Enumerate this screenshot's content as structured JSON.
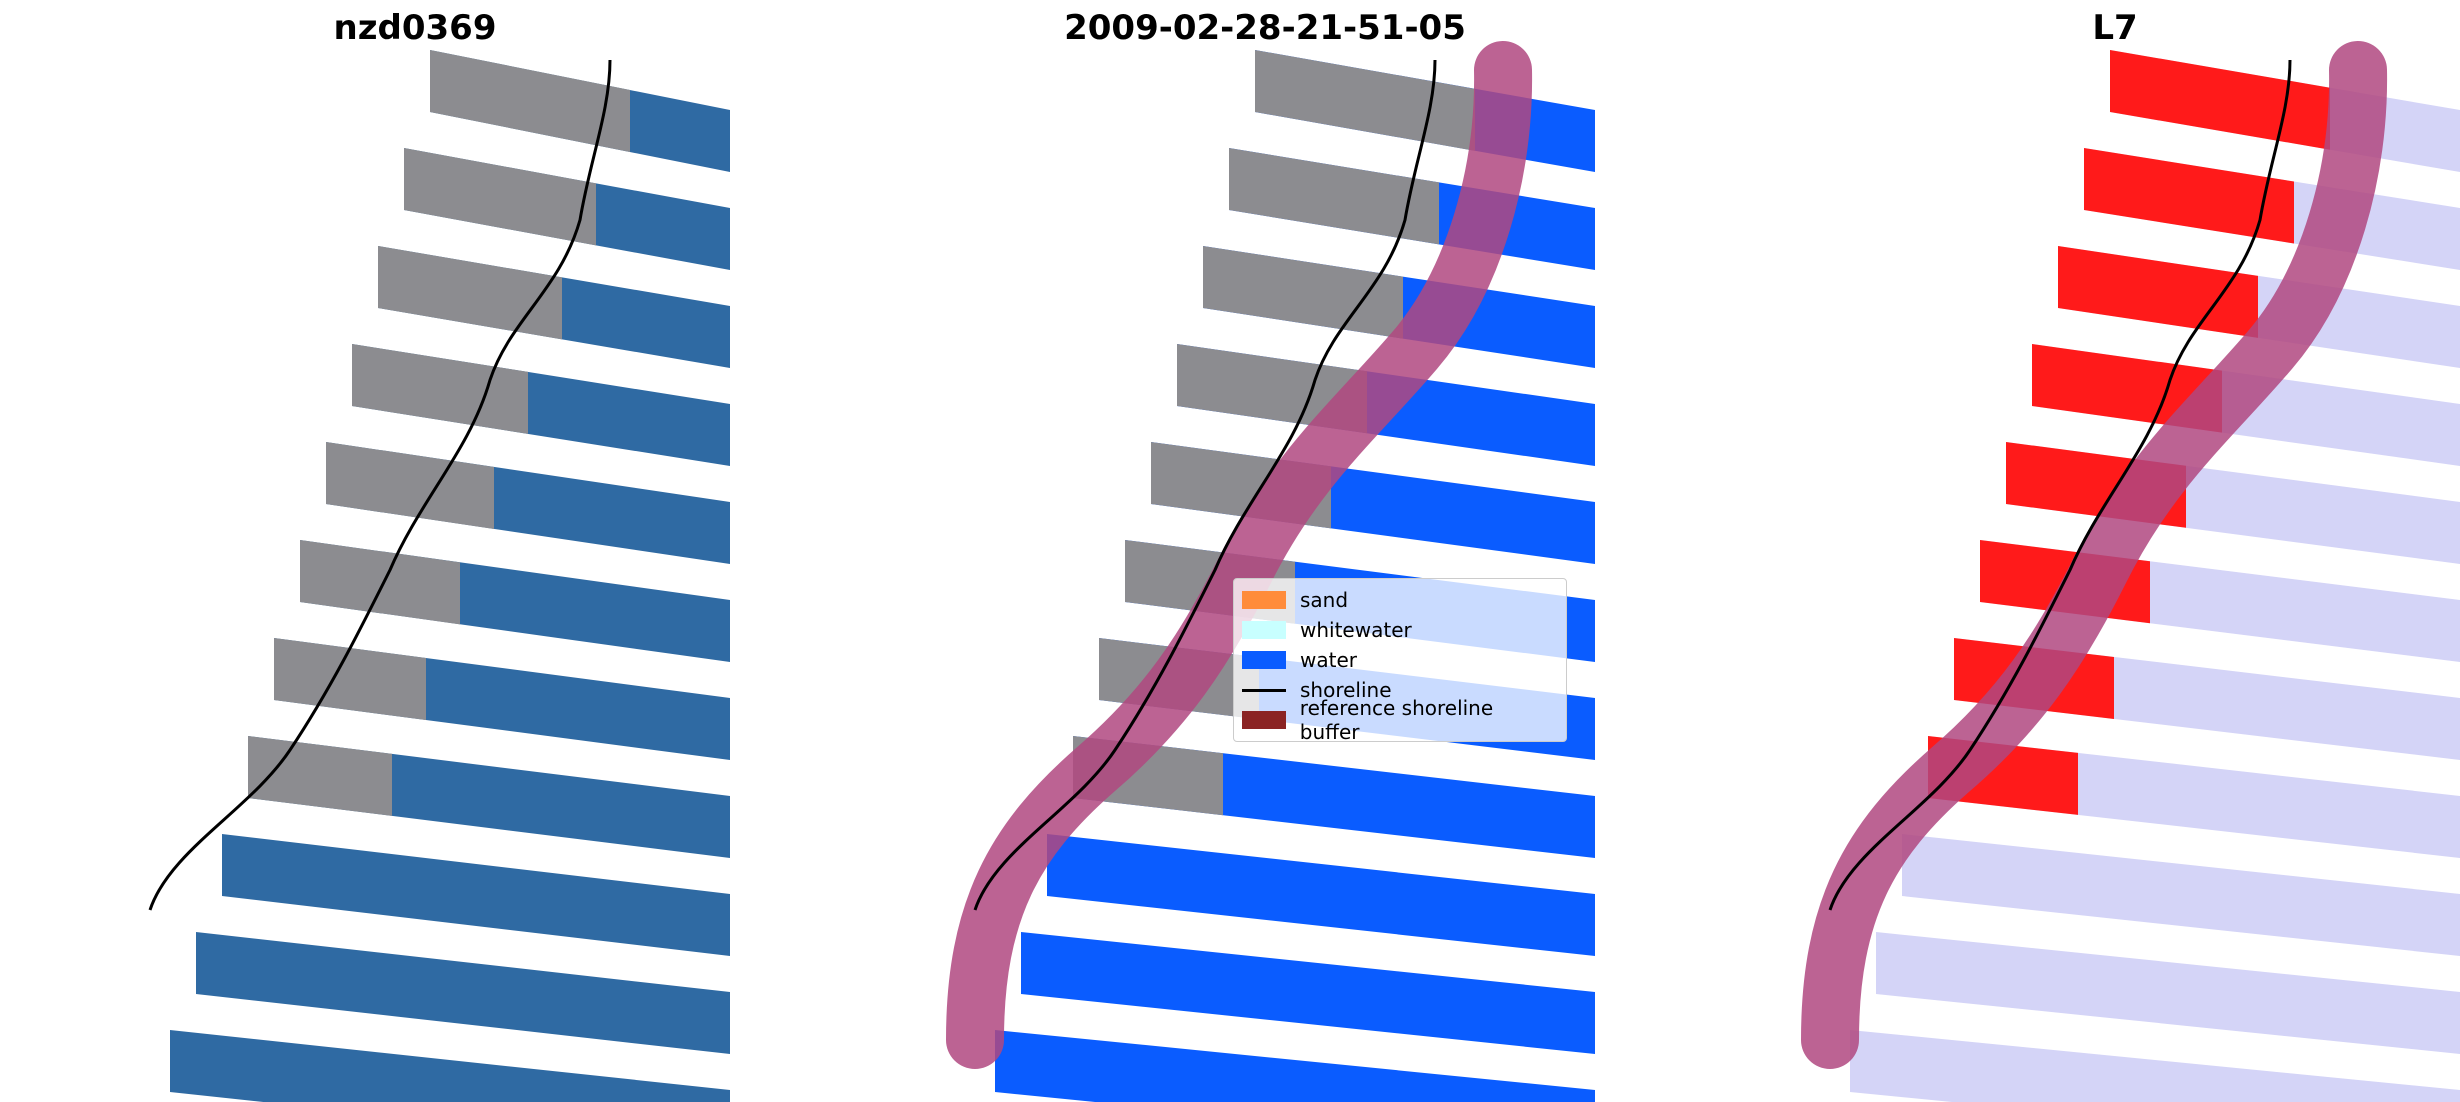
{
  "figure": {
    "panels": [
      {
        "title": "nzd0369",
        "kind": "rgb"
      },
      {
        "title": "2009-02-28-21-51-05",
        "kind": "classification"
      },
      {
        "title": "L7",
        "kind": "probability"
      }
    ],
    "legend": {
      "items": [
        {
          "label": "sand",
          "color": "#ff8c3a"
        },
        {
          "label": "whitewater",
          "color": "#c8ffff"
        },
        {
          "label": "water",
          "color": "#0a5cff"
        },
        {
          "label": "shoreline",
          "color": "#000000",
          "style": "line"
        },
        {
          "label": "reference shoreline buffer",
          "color": "#8b2323"
        }
      ]
    },
    "colors": {
      "rgb_water": "#2f6aa3",
      "rgb_land": "#8c8c90",
      "class_water": "#0a5cff",
      "prob_land": "#ff1a1a",
      "prob_water": "#d4d4f7",
      "buffer": "#b04880"
    }
  }
}
